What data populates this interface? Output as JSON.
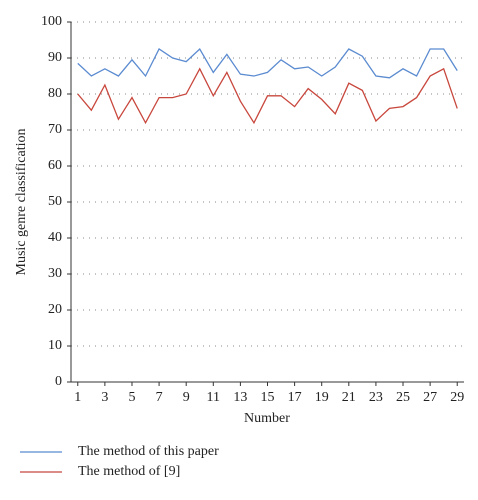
{
  "chart_data": {
    "type": "line",
    "x_label": "Number",
    "y_label": "Music genre classification",
    "x": [
      1,
      2,
      3,
      4,
      5,
      6,
      7,
      8,
      9,
      10,
      11,
      12,
      13,
      14,
      15,
      16,
      17,
      18,
      19,
      20,
      21,
      22,
      23,
      24,
      25,
      26,
      27,
      28,
      29
    ],
    "series": [
      {
        "name": "The method of this paper",
        "color": "#5b8bd0",
        "values": [
          88.5,
          85,
          87,
          85,
          89.5,
          85,
          92.5,
          90,
          89,
          92.5,
          86,
          91,
          85.5,
          85,
          86,
          89.5,
          87,
          87.5,
          85,
          87.5,
          92.5,
          90.5,
          85,
          84.5,
          87,
          85,
          92.5,
          92.5,
          86.5
        ]
      },
      {
        "name": "The method of [9]",
        "color": "#c8473d",
        "values": [
          80,
          75.5,
          82.5,
          73,
          79,
          72,
          79,
          79,
          80,
          87,
          79.5,
          86,
          78,
          72,
          79.5,
          79.5,
          76.5,
          81.5,
          78.5,
          74.5,
          83,
          81,
          72.5,
          76,
          76.5,
          79,
          85,
          87,
          76
        ]
      }
    ],
    "xlim": [
      0.5,
      29.5
    ],
    "xticks": [
      1,
      3,
      5,
      7,
      9,
      11,
      13,
      15,
      17,
      19,
      21,
      23,
      25,
      27,
      29
    ],
    "ylim": [
      0,
      100
    ],
    "yticks": [
      0,
      10,
      20,
      30,
      40,
      50,
      60,
      70,
      80,
      90,
      100
    ],
    "grid": true,
    "legend": "bottom"
  }
}
